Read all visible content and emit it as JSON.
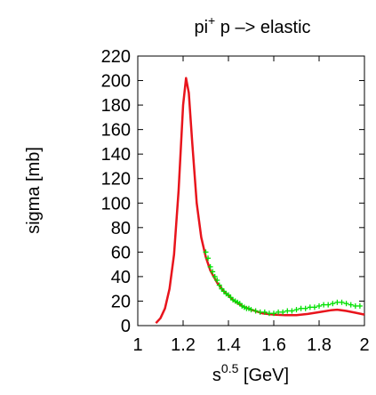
{
  "chart_data": {
    "type": "line",
    "title": {
      "base": "pi",
      "sup": "+",
      "rest": " p –> elastic"
    },
    "xlabel": {
      "base": "s",
      "sup": "0.5",
      "rest": " [GeV]"
    },
    "ylabel": "sigma [mb]",
    "xlim": [
      1,
      2
    ],
    "ylim": [
      0,
      220
    ],
    "x_ticks": [
      {
        "value": 1,
        "label": "1"
      },
      {
        "value": 1.2,
        "label": "1.2"
      },
      {
        "value": 1.4,
        "label": "1.4"
      },
      {
        "value": 1.6,
        "label": "1.6"
      },
      {
        "value": 1.8,
        "label": "1.8"
      },
      {
        "value": 2,
        "label": "2"
      }
    ],
    "y_ticks": [
      {
        "value": 0,
        "label": "0"
      },
      {
        "value": 20,
        "label": "20"
      },
      {
        "value": 40,
        "label": "40"
      },
      {
        "value": 60,
        "label": "60"
      },
      {
        "value": 80,
        "label": "80"
      },
      {
        "value": 100,
        "label": "100"
      },
      {
        "value": 120,
        "label": "120"
      },
      {
        "value": 140,
        "label": "140"
      },
      {
        "value": 160,
        "label": "160"
      },
      {
        "value": 180,
        "label": "180"
      },
      {
        "value": 200,
        "label": "200"
      },
      {
        "value": 220,
        "label": "220"
      }
    ],
    "grid": false,
    "series": [
      {
        "kind": "line",
        "color": "#e8141c",
        "points": [
          [
            1.08,
            2
          ],
          [
            1.1,
            6
          ],
          [
            1.12,
            14
          ],
          [
            1.14,
            30
          ],
          [
            1.16,
            58
          ],
          [
            1.18,
            110
          ],
          [
            1.2,
            180
          ],
          [
            1.213,
            202
          ],
          [
            1.225,
            190
          ],
          [
            1.24,
            150
          ],
          [
            1.26,
            100
          ],
          [
            1.28,
            72
          ],
          [
            1.3,
            56
          ],
          [
            1.32,
            45
          ],
          [
            1.35,
            35
          ],
          [
            1.38,
            28
          ],
          [
            1.42,
            21
          ],
          [
            1.46,
            16
          ],
          [
            1.5,
            13
          ],
          [
            1.55,
            10
          ],
          [
            1.6,
            9
          ],
          [
            1.65,
            8.5
          ],
          [
            1.7,
            8.5
          ],
          [
            1.75,
            9.5
          ],
          [
            1.8,
            11
          ],
          [
            1.85,
            12.5
          ],
          [
            1.88,
            13
          ],
          [
            1.92,
            12
          ],
          [
            1.96,
            10.5
          ],
          [
            2.0,
            9
          ]
        ]
      },
      {
        "kind": "scatter",
        "color": "#00e000",
        "marker": "cross",
        "points": [
          [
            1.3,
            60
          ],
          [
            1.31,
            55
          ],
          [
            1.32,
            48
          ],
          [
            1.33,
            44
          ],
          [
            1.34,
            40
          ],
          [
            1.35,
            37
          ],
          [
            1.36,
            33
          ],
          [
            1.37,
            30
          ],
          [
            1.38,
            28
          ],
          [
            1.39,
            26
          ],
          [
            1.4,
            25
          ],
          [
            1.41,
            23
          ],
          [
            1.42,
            21
          ],
          [
            1.43,
            20
          ],
          [
            1.44,
            19
          ],
          [
            1.45,
            18
          ],
          [
            1.46,
            16
          ],
          [
            1.47,
            15
          ],
          [
            1.48,
            14
          ],
          [
            1.49,
            14
          ],
          [
            1.5,
            13
          ],
          [
            1.52,
            12
          ],
          [
            1.54,
            11
          ],
          [
            1.56,
            11
          ],
          [
            1.58,
            10
          ],
          [
            1.6,
            10
          ],
          [
            1.62,
            11
          ],
          [
            1.64,
            11
          ],
          [
            1.66,
            12
          ],
          [
            1.68,
            12
          ],
          [
            1.7,
            13
          ],
          [
            1.72,
            14
          ],
          [
            1.74,
            14
          ],
          [
            1.76,
            15
          ],
          [
            1.78,
            15
          ],
          [
            1.8,
            16
          ],
          [
            1.82,
            17
          ],
          [
            1.84,
            17
          ],
          [
            1.86,
            18
          ],
          [
            1.88,
            19
          ],
          [
            1.9,
            19
          ],
          [
            1.92,
            18
          ],
          [
            1.94,
            17
          ],
          [
            1.96,
            16
          ],
          [
            1.98,
            16
          ]
        ]
      }
    ]
  }
}
